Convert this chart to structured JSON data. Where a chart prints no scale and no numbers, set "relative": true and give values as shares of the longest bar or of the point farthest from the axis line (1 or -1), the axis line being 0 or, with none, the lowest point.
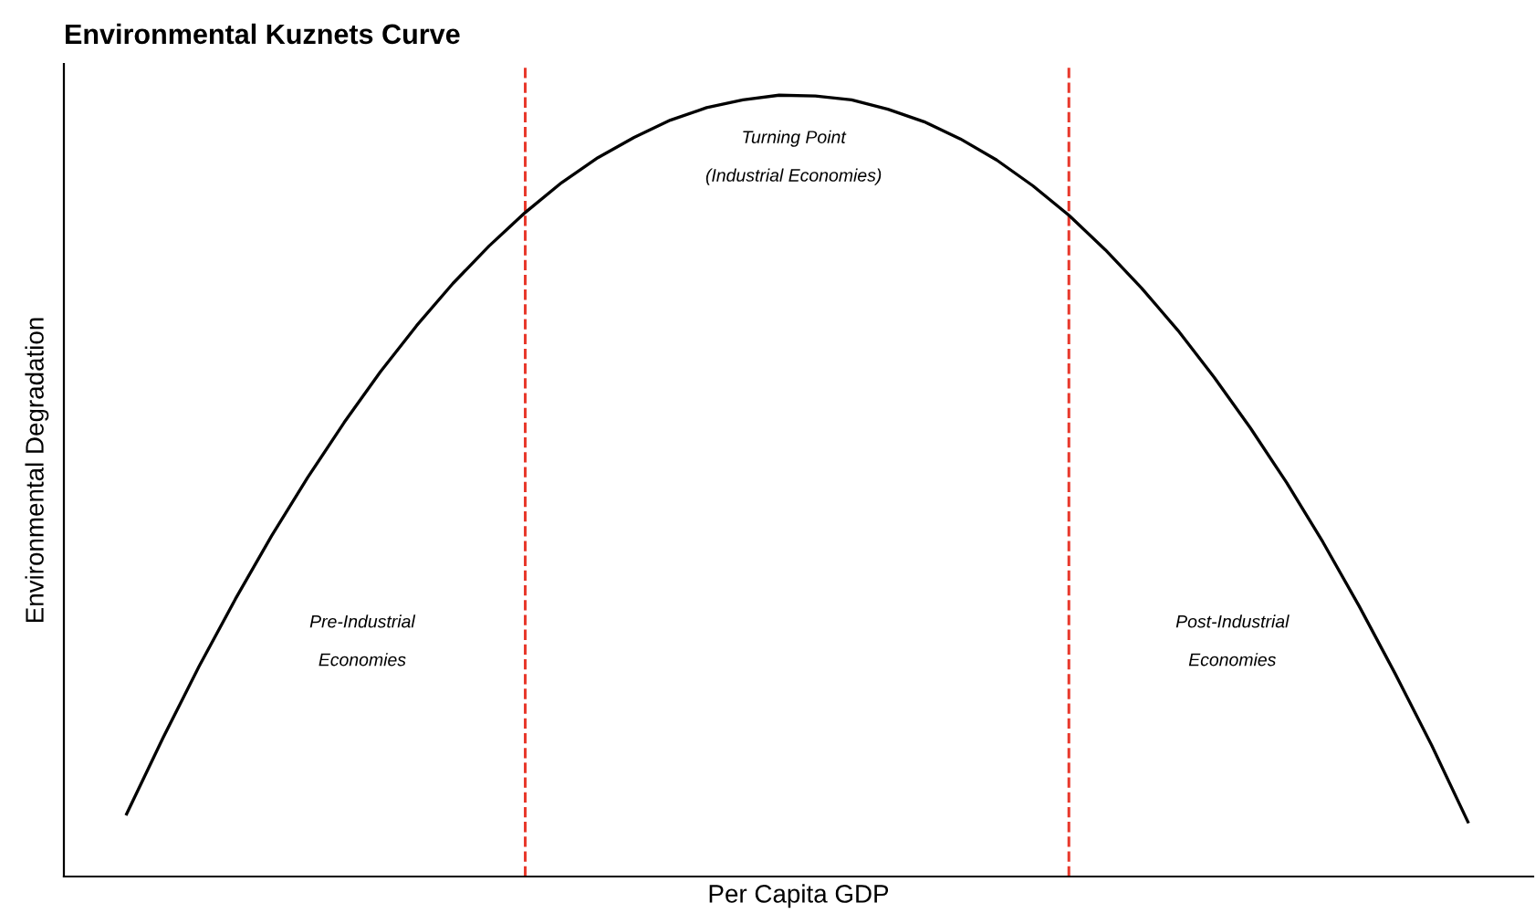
{
  "chart_data": {
    "type": "line",
    "title": "Environmental Kuznets Curve",
    "xlabel": "Per Capita GDP",
    "ylabel": "Environmental Degradation",
    "relative": true,
    "categories": [
      null,
      null,
      null,
      null,
      null,
      null,
      null,
      null,
      null,
      null,
      null,
      null,
      null,
      null,
      null,
      null,
      null,
      null,
      null,
      null,
      null,
      null,
      null,
      null,
      null,
      null,
      null,
      null,
      null,
      null,
      null,
      null,
      null,
      null,
      null,
      null,
      null,
      null
    ],
    "series": [
      {
        "color": "#000000",
        "values": [
          0.08,
          0.177,
          0.269,
          0.355,
          0.436,
          0.511,
          0.581,
          0.646,
          0.705,
          0.759,
          0.807,
          0.85,
          0.888,
          0.92,
          0.946,
          0.968,
          0.984,
          0.994,
          1.0,
          0.999,
          0.994,
          0.982,
          0.966,
          0.944,
          0.917,
          0.884,
          0.846,
          0.802,
          0.753,
          0.699,
          0.639,
          0.574,
          0.504,
          0.428,
          0.346,
          0.259,
          0.168,
          0.07
        ]
      }
    ],
    "annotations": [
      "Pre-Industrial\n\nEconomies",
      "Turning Point\n\n(Industrial Economies)",
      "Post-Industrial\n\nEconomies"
    ],
    "legend": false,
    "marker": "none",
    "line_style": "solid"
  }
}
